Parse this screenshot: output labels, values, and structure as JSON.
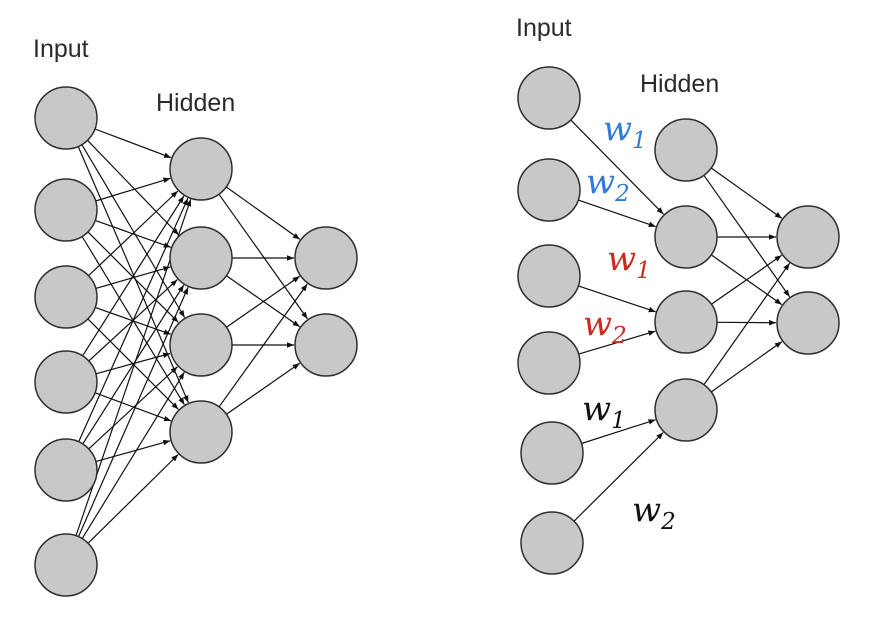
{
  "diagrams": {
    "dense": {
      "input_label": "Input",
      "hidden_label": "Hidden"
    },
    "sparse": {
      "input_label": "Input",
      "hidden_label": "Hidden",
      "weights": [
        {
          "base": "w",
          "sub": "1",
          "color": "#2f7ad6"
        },
        {
          "base": "w",
          "sub": "2",
          "color": "#2f7ad6"
        },
        {
          "base": "w",
          "sub": "1",
          "color": "#cc2a20"
        },
        {
          "base": "w",
          "sub": "2",
          "color": "#cc2a20"
        },
        {
          "base": "w",
          "sub": "1",
          "color": "#111111"
        },
        {
          "base": "w",
          "sub": "2",
          "color": "#111111"
        }
      ]
    }
  },
  "colors": {
    "node_fill": "#c8c8c8",
    "node_stroke": "#2e2e2e",
    "edge": "#111111"
  }
}
